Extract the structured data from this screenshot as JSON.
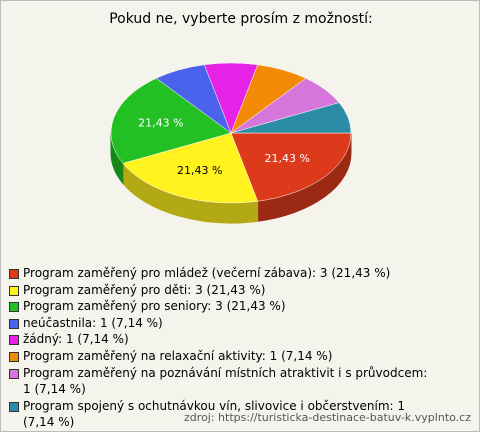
{
  "chart_data": {
    "type": "pie",
    "title": "Pokud ne, vyberte prosím z možností:",
    "categories": [
      "Program zaměřený pro mládež (večerní zábava)",
      "Program zaměřený pro děti",
      "Program zaměřený pro seniory",
      "neúčastnila",
      "žádný",
      "Program zaměřený na relaxační aktivity",
      "Program zaměřený na poznávání místních atraktivit i s průvodcem",
      "Program spojený s ochutnávkou vín, slivovice i občerstvením"
    ],
    "legend_labels": [
      "Program zaměřený pro mládež (večerní zábava): 3 (21,43 %)",
      "Program zaměřený pro děti: 3 (21,43 %)",
      "Program zaměřený pro seniory: 3 (21,43 %)",
      "neúčastnila: 1 (7,14 %)",
      "žádný: 1 (7,14 %)",
      "Program zaměřený na relaxační aktivity: 1 (7,14 %)",
      "Program zaměřený na poznávání místních atraktivit i s průvodcem: 1 (7,14 %)",
      "Program spojený s ochutnávkou vín, slivovice i občerstvením: 1 (7,14 %)"
    ],
    "values": [
      21.43,
      21.43,
      21.43,
      7.14,
      7.14,
      7.14,
      7.14,
      7.14
    ],
    "value_labels": [
      "21,43 %",
      "21,43 %",
      "21,43 %",
      null,
      null,
      null,
      null,
      null
    ],
    "colors": [
      "#dd3a1c",
      "#fff21e",
      "#22c022",
      "#4a62ec",
      "#e622e6",
      "#f28a06",
      "#d676dc",
      "#2b8ca6"
    ],
    "source": "zdroj: https://turisticka-destinace-batuv-k.vyplnto.cz"
  }
}
